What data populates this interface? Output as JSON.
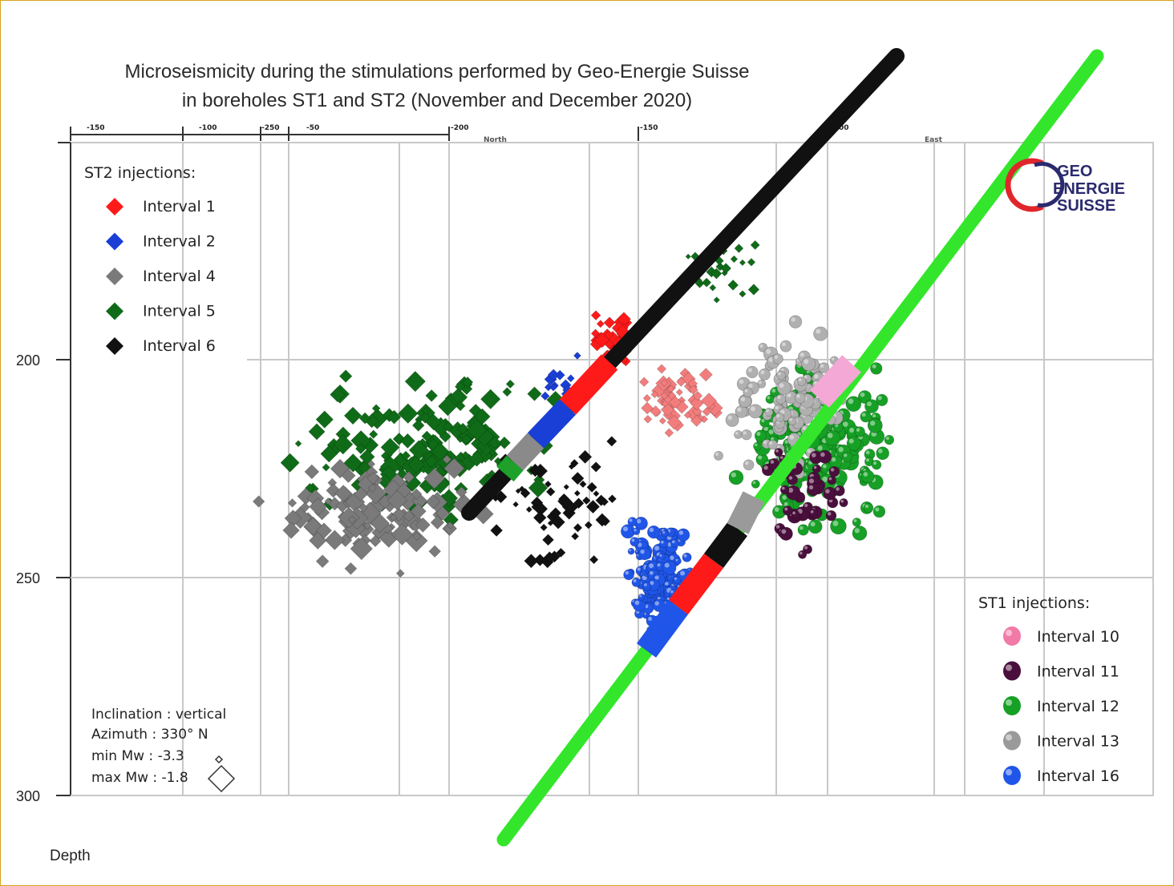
{
  "title_line1": "Microseismicity during the stimulations performed by Geo-Energie Suisse",
  "title_line2": "in boreholes ST1 and ST2 (November and December 2020)",
  "logo": {
    "line1": "GEO",
    "line2": "ENERGIE",
    "line3": "SUISSE",
    "color": "#2b2a6e",
    "accent": "#e1262b"
  },
  "depth_label": "Depth",
  "info": {
    "inclination": "Inclination : vertical",
    "azimuth": "Azimuth    : 330° N",
    "min_mw": "min Mw     : -3.3",
    "max_mw": "max Mw     : -1.8"
  },
  "chart_data": {
    "type": "scatter",
    "title": "Microseismicity during the stimulations performed by Geo-Energie Suisse in boreholes ST1 and ST2 (November and December 2020)",
    "ylabel": "Depth",
    "y_ticks": [
      "200",
      "250",
      "300"
    ],
    "top_ticks": [
      "-150",
      "-100",
      "-250",
      "-50",
      "-200",
      "-150",
      "-100"
    ],
    "top_axis_words": [
      "North",
      "East"
    ],
    "legend_st2": {
      "title": "ST2 injections:",
      "items": [
        {
          "label": "Interval 1",
          "color": "#ff1a1a"
        },
        {
          "label": "Interval 2",
          "color": "#1a3fd6"
        },
        {
          "label": "Interval 4",
          "color": "#7a7a7a"
        },
        {
          "label": "Interval 5",
          "color": "#0f6b17"
        },
        {
          "label": "Interval 6",
          "color": "#111111"
        }
      ]
    },
    "legend_st1": {
      "title": "ST1 injections:",
      "items": [
        {
          "label": "Interval 10",
          "color": "#f27aa6"
        },
        {
          "label": "Interval 11",
          "color": "#4a0f3c"
        },
        {
          "label": "Interval 12",
          "color": "#16a025"
        },
        {
          "label": "Interval 13",
          "color": "#9a9a9a"
        },
        {
          "label": "Interval 16",
          "color": "#1f55e8"
        }
      ]
    }
  }
}
